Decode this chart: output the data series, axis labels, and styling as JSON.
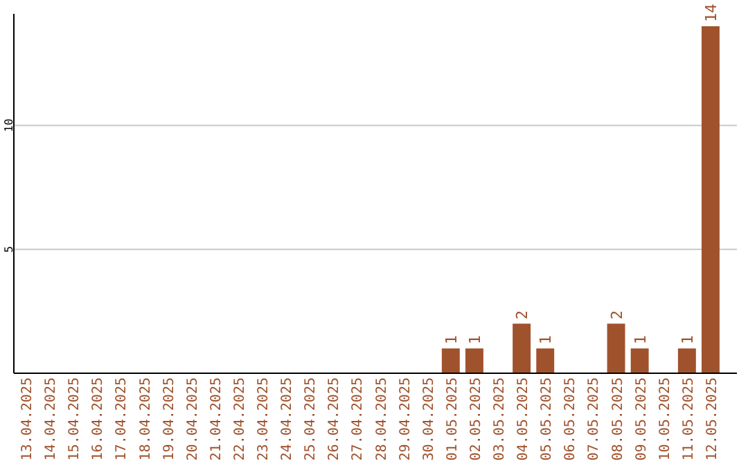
{
  "chart_data": {
    "type": "bar",
    "categories": [
      "13.04.2025",
      "14.04.2025",
      "15.04.2025",
      "16.04.2025",
      "17.04.2025",
      "18.04.2025",
      "19.04.2025",
      "20.04.2025",
      "21.04.2025",
      "22.04.2025",
      "23.04.2025",
      "24.04.2025",
      "25.04.2025",
      "26.04.2025",
      "27.04.2025",
      "28.04.2025",
      "29.04.2025",
      "30.04.2025",
      "01.05.2025",
      "02.05.2025",
      "03.05.2025",
      "04.05.2025",
      "05.05.2025",
      "06.05.2025",
      "07.05.2025",
      "08.05.2025",
      "09.05.2025",
      "10.05.2025",
      "11.05.2025",
      "12.05.2025"
    ],
    "values": [
      0,
      0,
      0,
      0,
      0,
      0,
      0,
      0,
      0,
      0,
      0,
      0,
      0,
      0,
      0,
      0,
      0,
      0,
      1,
      1,
      0,
      2,
      1,
      0,
      0,
      2,
      1,
      0,
      1,
      14
    ],
    "value_labels": [
      null,
      null,
      null,
      null,
      null,
      null,
      null,
      null,
      null,
      null,
      null,
      null,
      null,
      null,
      null,
      null,
      null,
      null,
      "1",
      "1",
      null,
      "2",
      "1",
      null,
      null,
      "2",
      "1",
      null,
      "1",
      "14"
    ],
    "color": "#a0522d",
    "ylim": [
      0,
      14.5
    ],
    "yticks": [
      5,
      10
    ],
    "grid": "y"
  }
}
